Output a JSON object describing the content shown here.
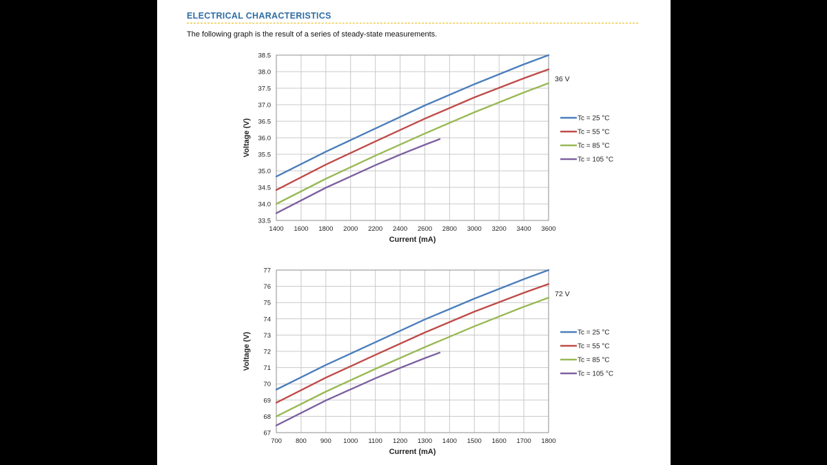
{
  "header": {
    "section_title": "ELECTRICAL CHARACTERISTICS",
    "intro": "The following graph is the result of a series of steady-state measurements."
  },
  "chart_data": [
    {
      "type": "line",
      "xlabel": "Current (mA)",
      "ylabel": "Voltage (V)",
      "annotation": "36 V",
      "xlim": [
        1400,
        3600
      ],
      "ylim": [
        33.5,
        38.5
      ],
      "xticks": [
        "1400",
        "1600",
        "1800",
        "2000",
        "2200",
        "2400",
        "2600",
        "2800",
        "3000",
        "3200",
        "3400",
        "3600"
      ],
      "yticks": [
        "33.5",
        "34.0",
        "34.5",
        "35.0",
        "35.5",
        "36.0",
        "36.5",
        "37.0",
        "37.5",
        "38.0",
        "38.5"
      ],
      "grid": true,
      "legend_position": "right",
      "series": [
        {
          "name": "Tc = 25 °C",
          "color": "#4a7ebb",
          "x": [
            1400,
            1800,
            2200,
            2600,
            3000,
            3400,
            3600
          ],
          "y": [
            34.83,
            35.58,
            36.28,
            36.98,
            37.62,
            38.22,
            38.5
          ]
        },
        {
          "name": "Tc = 55 °C",
          "color": "#be4b48",
          "x": [
            1400,
            1800,
            2200,
            2600,
            3000,
            3400,
            3600
          ],
          "y": [
            34.42,
            35.19,
            35.89,
            36.58,
            37.22,
            37.8,
            38.07
          ]
        },
        {
          "name": "Tc = 85 °C",
          "color": "#98b954",
          "x": [
            1400,
            1800,
            2200,
            2600,
            3000,
            3400,
            3600
          ],
          "y": [
            34.0,
            34.76,
            35.46,
            36.13,
            36.77,
            37.37,
            37.65
          ]
        },
        {
          "name": "Tc = 105 °C",
          "color": "#7d60a0",
          "x": [
            1400,
            1800,
            2200,
            2400,
            2600,
            2720
          ],
          "y": [
            33.72,
            34.49,
            35.17,
            35.49,
            35.79,
            35.96
          ]
        }
      ]
    },
    {
      "type": "line",
      "xlabel": "Current (mA)",
      "ylabel": "Voltage (V)",
      "annotation": "72 V",
      "xlim": [
        700,
        1800
      ],
      "ylim": [
        67,
        77
      ],
      "xticks": [
        "700",
        "800",
        "900",
        "1000",
        "1100",
        "1200",
        "1300",
        "1400",
        "1500",
        "1600",
        "1700",
        "1800"
      ],
      "yticks": [
        "67",
        "68",
        "69",
        "70",
        "71",
        "72",
        "73",
        "74",
        "75",
        "76",
        "77"
      ],
      "grid": true,
      "legend_position": "right",
      "series": [
        {
          "name": "Tc = 25 °C",
          "color": "#4a7ebb",
          "x": [
            700,
            900,
            1100,
            1300,
            1500,
            1700,
            1800
          ],
          "y": [
            69.65,
            71.16,
            72.56,
            73.96,
            75.24,
            76.44,
            77.0
          ]
        },
        {
          "name": "Tc = 55 °C",
          "color": "#be4b48",
          "x": [
            700,
            900,
            1100,
            1300,
            1500,
            1700,
            1800
          ],
          "y": [
            68.84,
            70.38,
            71.78,
            73.16,
            74.44,
            75.6,
            76.14
          ]
        },
        {
          "name": "Tc = 85 °C",
          "color": "#98b954",
          "x": [
            700,
            900,
            1100,
            1300,
            1500,
            1700,
            1800
          ],
          "y": [
            68.0,
            69.52,
            70.92,
            72.26,
            73.54,
            74.74,
            75.3
          ]
        },
        {
          "name": "Tc = 105 °C",
          "color": "#7d60a0",
          "x": [
            700,
            900,
            1100,
            1200,
            1300,
            1360
          ],
          "y": [
            67.44,
            68.98,
            70.34,
            70.98,
            71.58,
            71.92
          ]
        }
      ]
    }
  ]
}
